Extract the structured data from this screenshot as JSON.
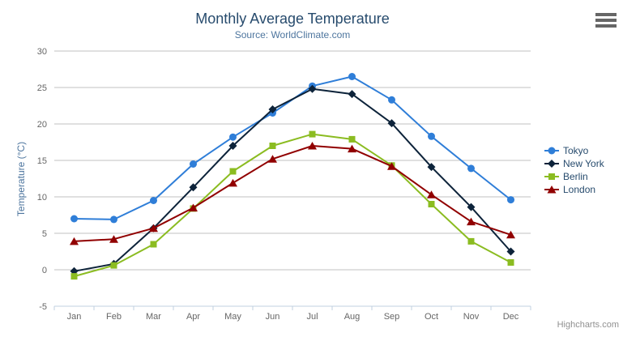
{
  "chart": {
    "credits": "Highcharts.com",
    "context_menu_icon": "hamburger-menu-icon",
    "colors": {
      "title": "#274b6d",
      "subtitle": "#4d759e",
      "axis_title": "#4d759e",
      "tick_label": "#666666",
      "grid_line": "#c0c0c0",
      "axis_line": "#c0d0e0",
      "credits": "#909090",
      "menu_icon": "#666666"
    }
  },
  "chart_data": {
    "type": "line",
    "title": "Monthly Average Temperature",
    "subtitle": "Source: WorldClimate.com",
    "xlabel": "",
    "ylabel": "Temperature (°C)",
    "ylim": [
      -5,
      30
    ],
    "y_ticks": [
      -5,
      0,
      5,
      10,
      15,
      20,
      25,
      30
    ],
    "grid": true,
    "legend_position": "right",
    "categories": [
      "Jan",
      "Feb",
      "Mar",
      "Apr",
      "May",
      "Jun",
      "Jul",
      "Aug",
      "Sep",
      "Oct",
      "Nov",
      "Dec"
    ],
    "series": [
      {
        "name": "Tokyo",
        "color": "#2f7ed8",
        "marker": "circle",
        "values": [
          7.0,
          6.9,
          9.5,
          14.5,
          18.2,
          21.5,
          25.2,
          26.5,
          23.3,
          18.3,
          13.9,
          9.6
        ]
      },
      {
        "name": "New York",
        "color": "#0d233a",
        "marker": "diamond",
        "values": [
          -0.2,
          0.8,
          5.7,
          11.3,
          17.0,
          22.0,
          24.8,
          24.1,
          20.1,
          14.1,
          8.6,
          2.5
        ]
      },
      {
        "name": "Berlin",
        "color": "#8bbc21",
        "marker": "square",
        "values": [
          -0.9,
          0.6,
          3.5,
          8.4,
          13.5,
          17.0,
          18.6,
          17.9,
          14.3,
          9.0,
          3.9,
          1.0
        ]
      },
      {
        "name": "London",
        "color": "#910000",
        "marker": "triangle",
        "values": [
          3.9,
          4.2,
          5.7,
          8.5,
          11.9,
          15.2,
          17.0,
          16.6,
          14.2,
          10.3,
          6.6,
          4.8
        ]
      }
    ]
  }
}
